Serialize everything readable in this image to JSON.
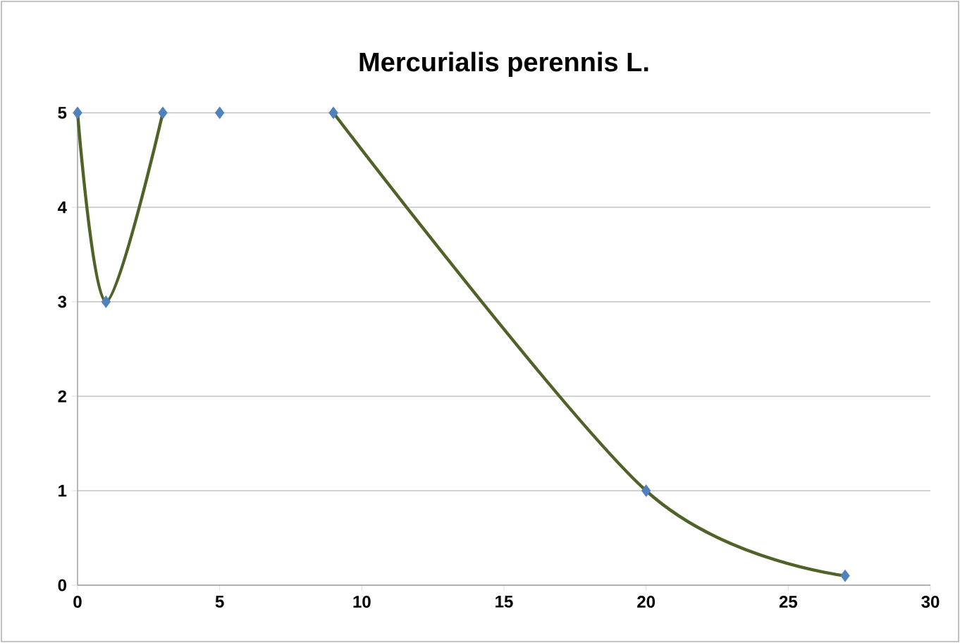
{
  "chart_data": {
    "type": "line",
    "title": "Mercurialis perennis L.",
    "series": [
      {
        "color": "#4f6228",
        "marker": "none",
        "line_style": "solid",
        "x": [
          0,
          1,
          3
        ],
        "values": [
          5,
          3,
          5
        ]
      },
      {
        "color": "#4f6228",
        "marker": "none",
        "line_style": "solid",
        "x": [
          9,
          20,
          27
        ],
        "values": [
          5,
          1,
          0.1
        ]
      },
      {
        "type": "scatter",
        "color": "#4f81bd",
        "marker": "diamond",
        "x": [
          0,
          1,
          3,
          5,
          9,
          20,
          27
        ],
        "values": [
          5,
          3,
          5,
          5,
          5,
          1,
          0.1
        ]
      }
    ],
    "xlim": [
      0,
      30
    ],
    "xticks": [
      0,
      5,
      10,
      15,
      20,
      25,
      30
    ],
    "ylim": [
      0,
      5
    ],
    "yticks": [
      0,
      1,
      2,
      3,
      4,
      5
    ],
    "grid": "y"
  }
}
